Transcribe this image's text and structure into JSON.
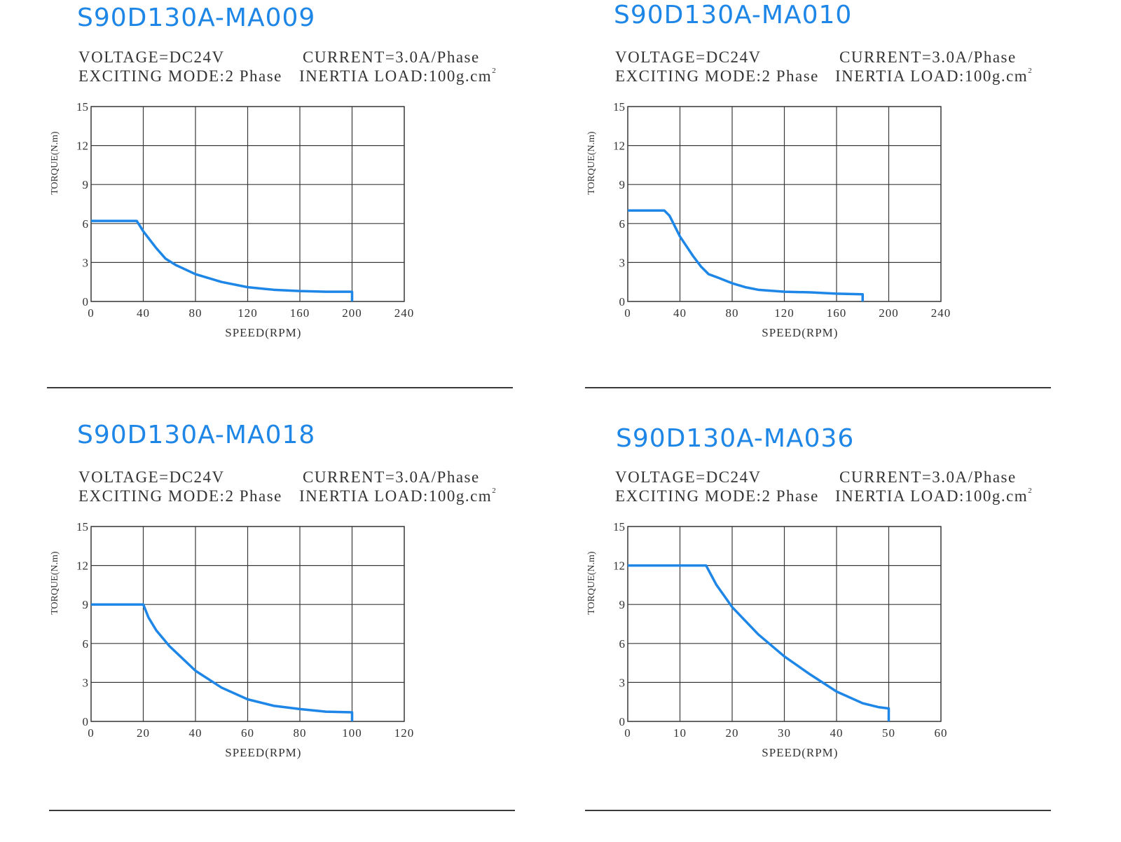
{
  "chart_data": [
    {
      "type": "line",
      "title": "S90D130A-MA009",
      "specs": {
        "voltage": "VOLTAGE=DC24V",
        "current": "CURRENT=3.0A/Phase",
        "mode": "EXCITING  MODE:2 Phase",
        "inertia": "INERTIA  LOAD:100g.cm",
        "inertia_sup": "2"
      },
      "xlabel": "SPEED(RPM)",
      "ylabel": "TORQUE(N.m)",
      "xlim": [
        0,
        240
      ],
      "ylim": [
        0,
        15
      ],
      "x_ticks": [
        "0",
        "40",
        "80",
        "120",
        "160",
        "200",
        "240"
      ],
      "y_ticks": [
        "0",
        "3",
        "6",
        "9",
        "12",
        "15"
      ],
      "grid": true,
      "series": [
        {
          "x": [
            0,
            35,
            40,
            50,
            57,
            65,
            80,
            100,
            120,
            140,
            160,
            180,
            200,
            200
          ],
          "y": [
            6.2,
            6.2,
            5.4,
            4.1,
            3.3,
            2.8,
            2.1,
            1.5,
            1.1,
            0.9,
            0.8,
            0.75,
            0.75,
            0
          ]
        }
      ]
    },
    {
      "type": "line",
      "title": "S90D130A-MA010",
      "specs": {
        "voltage": "VOLTAGE=DC24V",
        "current": "CURRENT=3.0A/Phase",
        "mode": "EXCITING  MODE:2 Phase",
        "inertia": "INERTIA  LOAD:100g.cm",
        "inertia_sup": "2"
      },
      "xlabel": "SPEED(RPM)",
      "ylabel": "TORQUE(N.m)",
      "xlim": [
        0,
        240
      ],
      "ylim": [
        0,
        15
      ],
      "x_ticks": [
        "0",
        "40",
        "80",
        "120",
        "160",
        "200",
        "240"
      ],
      "y_ticks": [
        "0",
        "3",
        "6",
        "9",
        "12",
        "15"
      ],
      "grid": true,
      "series": [
        {
          "x": [
            0,
            28,
            32,
            40,
            50,
            56,
            62,
            70,
            80,
            90,
            100,
            120,
            140,
            160,
            180,
            180
          ],
          "y": [
            7.0,
            7.0,
            6.6,
            5.0,
            3.5,
            2.7,
            2.1,
            1.8,
            1.4,
            1.1,
            0.9,
            0.75,
            0.7,
            0.6,
            0.55,
            0
          ]
        }
      ]
    },
    {
      "type": "line",
      "title": "S90D130A-MA018",
      "specs": {
        "voltage": "VOLTAGE=DC24V",
        "current": "CURRENT=3.0A/Phase",
        "mode": "EXCITING  MODE:2 Phase",
        "inertia": "INERTIA  LOAD:100g.cm",
        "inertia_sup": "2"
      },
      "xlabel": "SPEED(RPM)",
      "ylabel": "TORQUE(N.m)",
      "xlim": [
        0,
        120
      ],
      "ylim": [
        0,
        15
      ],
      "x_ticks": [
        "0",
        "20",
        "40",
        "60",
        "80",
        "100",
        "120"
      ],
      "y_ticks": [
        "0",
        "3",
        "6",
        "9",
        "12",
        "15"
      ],
      "grid": true,
      "series": [
        {
          "x": [
            0,
            20,
            22,
            25,
            30,
            40,
            50,
            60,
            70,
            80,
            90,
            100,
            100
          ],
          "y": [
            9.0,
            9.0,
            8.0,
            7.0,
            5.8,
            3.9,
            2.6,
            1.7,
            1.2,
            0.95,
            0.75,
            0.7,
            0
          ]
        }
      ]
    },
    {
      "type": "line",
      "title": "S90D130A-MA036",
      "specs": {
        "voltage": "VOLTAGE=DC24V",
        "current": "CURRENT=3.0A/Phase",
        "mode": "EXCITING  MODE:2 Phase",
        "inertia": "INERTIA  LOAD:100g.cm",
        "inertia_sup": "2"
      },
      "xlabel": "SPEED(RPM)",
      "ylabel": "TORQUE(N.m)",
      "xlim": [
        0,
        60
      ],
      "ylim": [
        0,
        15
      ],
      "x_ticks": [
        "0",
        "10",
        "20",
        "30",
        "40",
        "50",
        "60"
      ],
      "y_ticks": [
        "0",
        "3",
        "6",
        "9",
        "12",
        "15"
      ],
      "grid": true,
      "series": [
        {
          "x": [
            0,
            15,
            17,
            20,
            25,
            30,
            35,
            40,
            45,
            48,
            50,
            50
          ],
          "y": [
            12.0,
            12.0,
            10.5,
            8.8,
            6.7,
            5.0,
            3.6,
            2.3,
            1.4,
            1.1,
            1.0,
            0
          ]
        }
      ]
    }
  ],
  "colors": {
    "title": "#1d86e6",
    "curve": "#1d86e6",
    "grid": "#3a3a3a",
    "text": "#333333"
  }
}
